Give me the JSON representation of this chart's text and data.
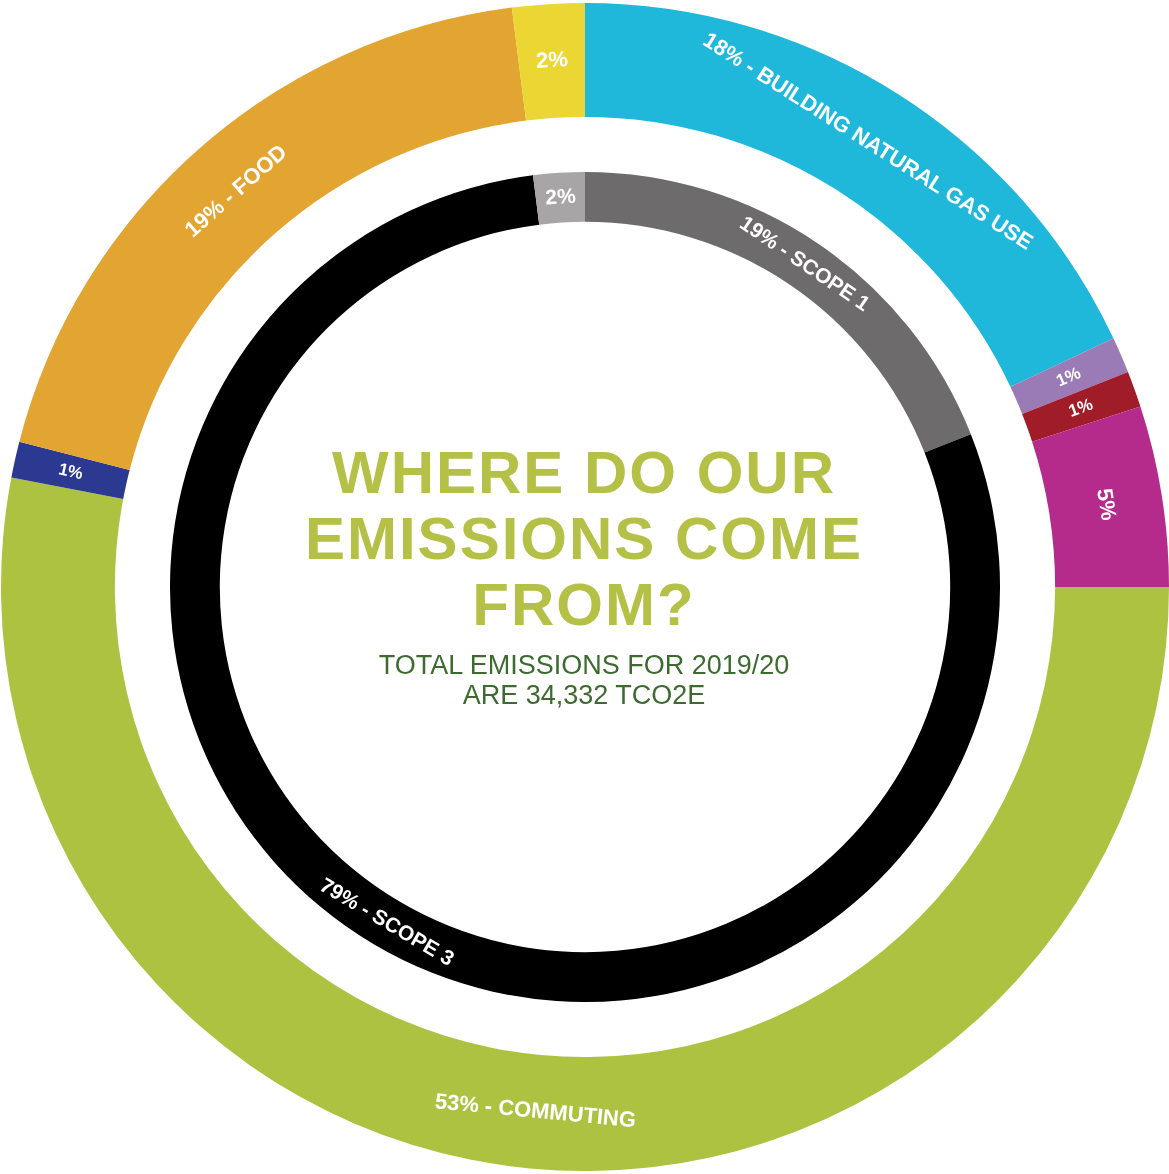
{
  "chart_data": [
    {
      "type": "donut",
      "title": "WHERE DO OUR EMISSIONS COME FROM?",
      "subtitle": "TOTAL EMISSIONS FOR 2019/20 ARE 34,332 TCO2E",
      "categories": [
        "BUILDING NATURAL GAS USE",
        null,
        null,
        null,
        "COMMUTING",
        null,
        "FOOD",
        null
      ],
      "values": [
        18,
        1,
        1,
        5,
        53,
        1,
        19,
        2
      ],
      "colors": [
        "#1fb8db",
        "#9b7bb5",
        "#a01c28",
        "#b52b8c",
        "#adc241",
        "#2b3990",
        "#e2a532",
        "#ecd634"
      ],
      "value_labels": [
        "18% -",
        "1%",
        "1%",
        "5%",
        "53% -",
        "1%",
        "19% -",
        "2%"
      ]
    },
    {
      "type": "donut",
      "categories": [
        "SCOPE 1",
        "SCOPE 3",
        null
      ],
      "values": [
        19,
        79,
        2
      ],
      "colors": [
        "#6d6b6b",
        "#000000",
        "#a7a5a5"
      ],
      "value_labels": [
        "19% -",
        "79% -",
        "2%"
      ]
    }
  ]
}
